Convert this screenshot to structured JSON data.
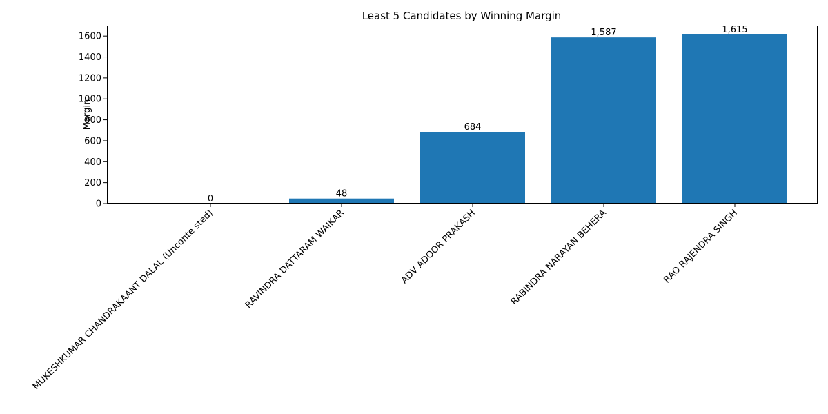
{
  "chart_data": {
    "type": "bar",
    "title": "Least 5 Candidates by Winning Margin",
    "xlabel": "",
    "ylabel": "Margin",
    "categories": [
      "MUKESHKUMAR CHANDRAKAANT DALAL (Unconte sted)",
      "RAVINDRA DATTARAM WAIKAR",
      "ADV ADOOR PRAKASH",
      "RABINDRA NARAYAN BEHERA",
      "RAO RAJENDRA SINGH"
    ],
    "values": [
      0,
      48,
      684,
      1587,
      1615
    ],
    "data_labels": [
      "0",
      "48",
      "684",
      "1,587",
      "1,615"
    ],
    "ylim": [
      0,
      1700
    ],
    "yticks": [
      0,
      200,
      400,
      600,
      800,
      1000,
      1200,
      1400,
      1600
    ],
    "grid": false,
    "colors": {
      "bar": "#1f77b4",
      "axis": "#000000"
    }
  }
}
